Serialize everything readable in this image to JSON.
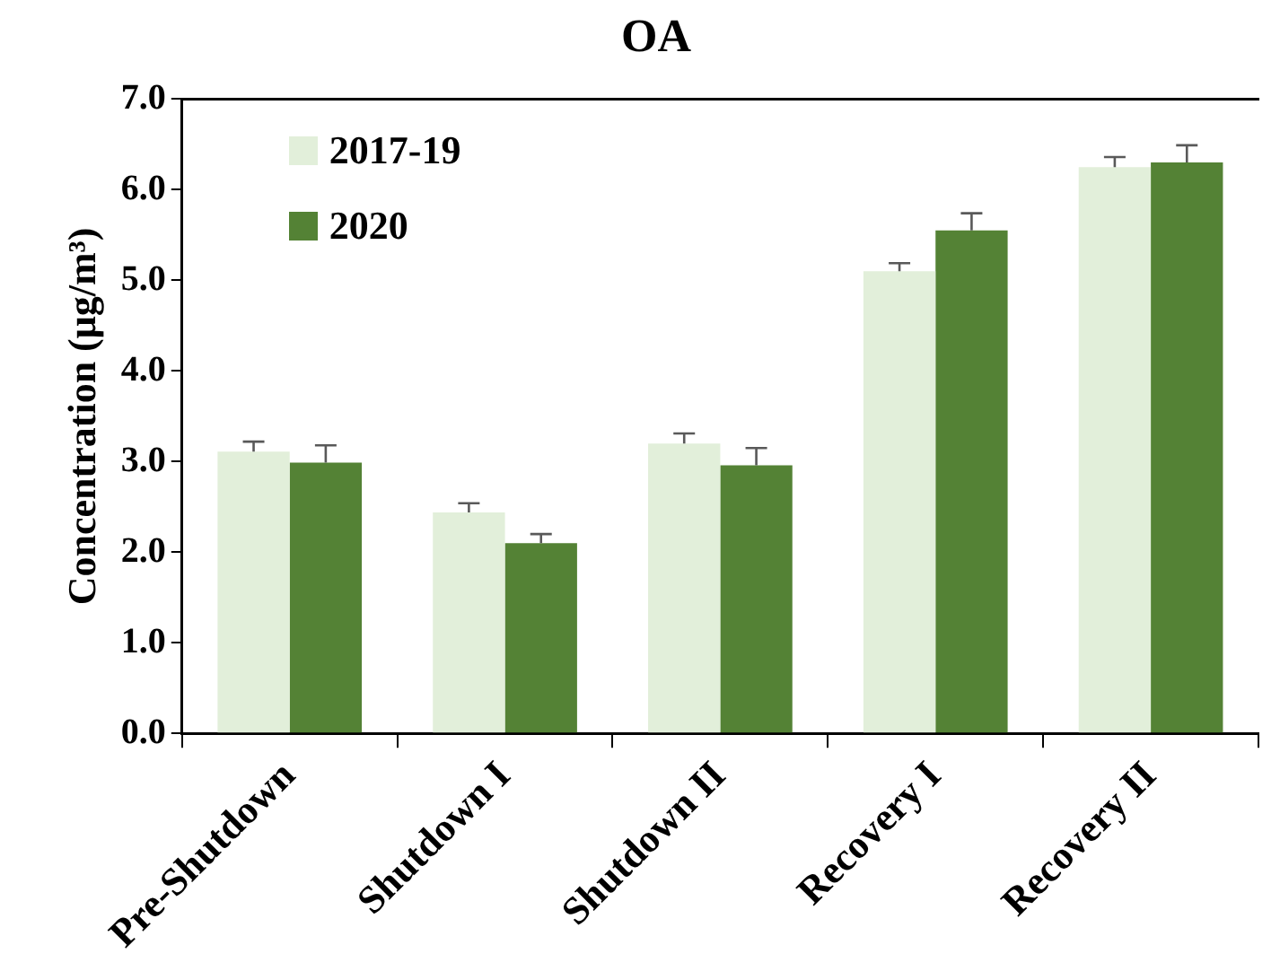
{
  "chart_data": {
    "type": "bar",
    "title": "OA",
    "ylabel": "Concentration (μg/m³)",
    "categories": [
      "Pre-Shutdown",
      "Shutdown I",
      "Shutdown II",
      "Recovery I",
      "Recovery II"
    ],
    "series": [
      {
        "name": "2017-19",
        "color": "#e2efda",
        "values": [
          3.11,
          2.44,
          3.2,
          5.1,
          6.25
        ],
        "errors": [
          [
            3.11,
            3.22
          ],
          [
            2.44,
            2.54
          ],
          [
            3.2,
            3.31
          ],
          [
            5.1,
            5.19
          ],
          [
            6.25,
            6.36
          ]
        ]
      },
      {
        "name": "2020",
        "color": "#548235",
        "values": [
          2.99,
          2.1,
          2.96,
          5.55,
          6.3
        ],
        "errors": [
          [
            2.99,
            3.18
          ],
          [
            2.1,
            2.2
          ],
          [
            2.96,
            3.15
          ],
          [
            5.55,
            5.74
          ],
          [
            6.3,
            6.49
          ]
        ]
      }
    ],
    "ylim": [
      0,
      7
    ],
    "yticks": [
      {
        "value": 0,
        "label": "0.0"
      },
      {
        "value": 1,
        "label": "1.0"
      },
      {
        "value": 2,
        "label": "2.0"
      },
      {
        "value": 3,
        "label": "3.0"
      },
      {
        "value": 4,
        "label": "4.0"
      },
      {
        "value": 5,
        "label": "5.0"
      },
      {
        "value": 6,
        "label": "6.0"
      },
      {
        "value": 7,
        "label": "7.0"
      }
    ],
    "grid": false,
    "legend": "top left"
  }
}
